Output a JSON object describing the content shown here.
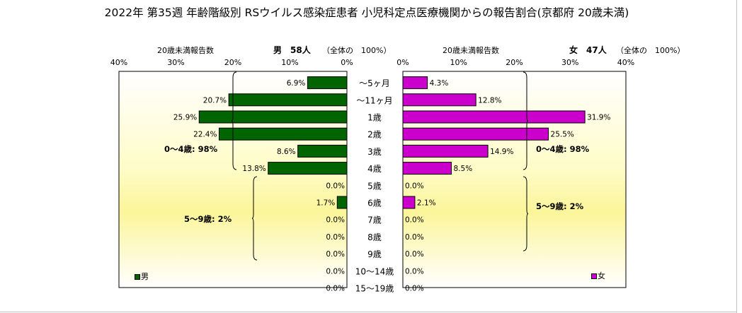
{
  "title": "2022年 第35週 年齢階級別 RSウイルス感染症患者 小児科定点医療機関からの報告割合(京都府 20歳未満)",
  "left_panel": {
    "axis_caption": "20歳未満報告数",
    "sex_count": "男　58人",
    "total_note": "（全体の　100%）",
    "legend_label": "男",
    "bar_color": "#006400",
    "group_labels": [
      "0～4歳: 98%",
      "5～9歳: 2%"
    ]
  },
  "right_panel": {
    "axis_caption": "20歳未満報告数",
    "sex_count": "女　47人",
    "total_note": "（全体の　100%）",
    "legend_label": "女",
    "bar_color": "#cc00cc",
    "group_labels": [
      "0～4歳: 98%",
      "5～9歳: 2%"
    ]
  },
  "chart_data": [
    {
      "type": "bar",
      "orientation": "horizontal",
      "direction": "right-to-left",
      "categories": [
        "～5ヶ月",
        "～11ヶ月",
        "1歳",
        "2歳",
        "3歳",
        "4歳",
        "5歳",
        "6歳",
        "7歳",
        "8歳",
        "9歳",
        "10～14歳",
        "15～19歳"
      ],
      "series": [
        {
          "name": "男",
          "values": [
            6.9,
            20.7,
            25.9,
            22.4,
            8.6,
            13.8,
            0.0,
            1.7,
            0.0,
            0.0,
            0.0,
            0.0,
            0.0
          ]
        }
      ],
      "value_labels": [
        "6.9%",
        "20.7%",
        "25.9%",
        "22.4%",
        "8.6%",
        "13.8%",
        "0.0%",
        "1.7%",
        "0.0%",
        "0.0%",
        "0.0%",
        "0.0%",
        "0.0%"
      ],
      "xlim": [
        0,
        40
      ],
      "x_ticks": [
        "40%",
        "30%",
        "20%",
        "10%",
        "0%"
      ],
      "legend": "bottom-left",
      "grid": false
    },
    {
      "type": "bar",
      "orientation": "horizontal",
      "direction": "left-to-right",
      "categories": [
        "～5ヶ月",
        "～11ヶ月",
        "1歳",
        "2歳",
        "3歳",
        "4歳",
        "5歳",
        "6歳",
        "7歳",
        "8歳",
        "9歳",
        "10～14歳",
        "15～19歳"
      ],
      "series": [
        {
          "name": "女",
          "values": [
            4.3,
            12.8,
            31.9,
            25.5,
            14.9,
            8.5,
            0.0,
            2.1,
            0.0,
            0.0,
            0.0,
            0.0,
            0.0
          ]
        }
      ],
      "value_labels": [
        "4.3%",
        "12.8%",
        "31.9%",
        "25.5%",
        "14.9%",
        "8.5%",
        "0.0%",
        "2.1%",
        "0.0%",
        "0.0%",
        "0.0%",
        "0.0%",
        "0.0%"
      ],
      "xlim": [
        0,
        40
      ],
      "x_ticks": [
        "0%",
        "10%",
        "20%",
        "30%",
        "40%"
      ],
      "legend": "bottom-right",
      "grid": false
    }
  ]
}
